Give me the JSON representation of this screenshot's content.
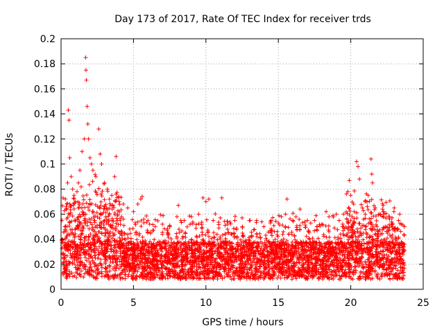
{
  "chart_data": {
    "type": "scatter",
    "title": "Day 173 of 2017, Rate Of TEC Index for receiver trds",
    "xlabel": "GPS time / hours",
    "ylabel": "ROTI / TECUs",
    "xlim": [
      0,
      25
    ],
    "ylim": [
      0,
      0.2
    ],
    "xticks": [
      0,
      5,
      10,
      15,
      20,
      25
    ],
    "yticks": [
      0,
      0.02,
      0.04,
      0.06,
      0.08,
      0.1,
      0.12,
      0.14,
      0.16,
      0.18,
      0.2
    ],
    "xtick_labels": [
      "0",
      "5",
      "10",
      "15",
      "20",
      "25"
    ],
    "ytick_labels": [
      "0",
      "0.02",
      "0.04",
      "0.06",
      "0.08",
      "0.1",
      "0.12",
      "0.14",
      "0.16",
      "0.18",
      "0.2"
    ],
    "grid": true,
    "marker": "+",
    "series_color": "#ff0000",
    "series": [
      {
        "points": [
          [
            0.3,
            0.072
          ],
          [
            0.4,
            0.068
          ],
          [
            0.45,
            0.085
          ],
          [
            0.5,
            0.143
          ],
          [
            0.55,
            0.135
          ],
          [
            0.6,
            0.105
          ],
          [
            0.7,
            0.09
          ],
          [
            0.8,
            0.08
          ],
          [
            0.9,
            0.075
          ],
          [
            1.0,
            0.07
          ],
          [
            1.1,
            0.078
          ],
          [
            1.2,
            0.085
          ],
          [
            1.3,
            0.095
          ],
          [
            1.45,
            0.11
          ],
          [
            1.6,
            0.12
          ],
          [
            1.7,
            0.185
          ],
          [
            1.72,
            0.175
          ],
          [
            1.75,
            0.167
          ],
          [
            1.8,
            0.146
          ],
          [
            1.85,
            0.132
          ],
          [
            1.9,
            0.12
          ],
          [
            2.0,
            0.105
          ],
          [
            2.1,
            0.1
          ],
          [
            2.2,
            0.095
          ],
          [
            2.4,
            0.09
          ],
          [
            2.6,
            0.128
          ],
          [
            2.7,
            0.108
          ],
          [
            2.8,
            0.1
          ],
          [
            3.0,
            0.085
          ],
          [
            3.2,
            0.08
          ],
          [
            3.5,
            0.075
          ],
          [
            3.7,
            0.09
          ],
          [
            3.8,
            0.106
          ],
          [
            4.0,
            0.07
          ],
          [
            4.3,
            0.068
          ],
          [
            4.6,
            0.065
          ],
          [
            5.0,
            0.062
          ],
          [
            5.3,
            0.068
          ],
          [
            5.5,
            0.072
          ],
          [
            5.6,
            0.074
          ],
          [
            6.0,
            0.055
          ],
          [
            6.5,
            0.05
          ],
          [
            7.0,
            0.052
          ],
          [
            7.5,
            0.05
          ],
          [
            8.0,
            0.058
          ],
          [
            8.1,
            0.067
          ],
          [
            8.5,
            0.055
          ],
          [
            9.0,
            0.058
          ],
          [
            9.5,
            0.06
          ],
          [
            9.8,
            0.073
          ],
          [
            10.0,
            0.07
          ],
          [
            10.2,
            0.072
          ],
          [
            10.5,
            0.055
          ],
          [
            11.0,
            0.057
          ],
          [
            11.1,
            0.073
          ],
          [
            11.5,
            0.052
          ],
          [
            12.0,
            0.055
          ],
          [
            12.5,
            0.057
          ],
          [
            13.0,
            0.055
          ],
          [
            13.5,
            0.055
          ],
          [
            14.0,
            0.05
          ],
          [
            14.5,
            0.055
          ],
          [
            15.0,
            0.053
          ],
          [
            15.5,
            0.06
          ],
          [
            15.6,
            0.072
          ],
          [
            16.0,
            0.055
          ],
          [
            16.5,
            0.064
          ],
          [
            17.0,
            0.055
          ],
          [
            17.5,
            0.055
          ],
          [
            18.0,
            0.052
          ],
          [
            18.3,
            0.062
          ],
          [
            18.5,
            0.058
          ],
          [
            19.0,
            0.06
          ],
          [
            19.5,
            0.06
          ],
          [
            19.8,
            0.078
          ],
          [
            19.9,
            0.087
          ],
          [
            20.0,
            0.075
          ],
          [
            20.2,
            0.068
          ],
          [
            20.4,
            0.102
          ],
          [
            20.5,
            0.098
          ],
          [
            20.6,
            0.088
          ],
          [
            20.8,
            0.065
          ],
          [
            21.0,
            0.06
          ],
          [
            21.2,
            0.075
          ],
          [
            21.4,
            0.104
          ],
          [
            21.45,
            0.092
          ],
          [
            21.5,
            0.085
          ],
          [
            21.7,
            0.065
          ],
          [
            22.0,
            0.06
          ],
          [
            22.3,
            0.06
          ],
          [
            22.6,
            0.058
          ],
          [
            23.0,
            0.065
          ],
          [
            23.3,
            0.055
          ],
          [
            23.5,
            0.052
          ],
          [
            23.7,
            0.05
          ]
        ]
      }
    ]
  }
}
